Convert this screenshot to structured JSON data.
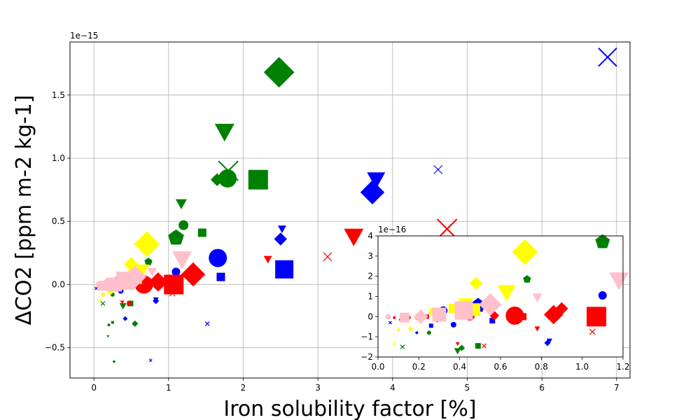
{
  "chart_data": [
    {
      "type": "scatter",
      "title": "",
      "xlabel": "Iron solubility factor [%]",
      "ylabel": "ΔCO2 [ppm m-2 kg-1]",
      "y_offset_label": "1e−15",
      "xlim": [
        -0.32,
        7.18
      ],
      "ylim": [
        -0.74,
        1.92
      ],
      "xticks": [
        0,
        1,
        2,
        3,
        4,
        5,
        6,
        7
      ],
      "xtick_labels": [
        "0",
        "1",
        "2",
        "3",
        "4",
        "5",
        "6",
        "7"
      ],
      "yticks": [
        -0.5,
        0.0,
        0.5,
        1.0,
        1.5
      ],
      "ytick_labels": [
        "−0.5",
        "0.0",
        "0.5",
        "1.0",
        "1.5"
      ],
      "grid": true,
      "legend": "none",
      "points": [
        {
          "x": 2.48,
          "y": 1.68,
          "color": "green",
          "marker": "diamond",
          "size": 19
        },
        {
          "x": 1.75,
          "y": 1.21,
          "color": "green",
          "marker": "triangle-down",
          "size": 14
        },
        {
          "x": 1.8,
          "y": 0.9,
          "color": "green",
          "marker": "x",
          "size": 14
        },
        {
          "x": 1.79,
          "y": 0.84,
          "color": "green",
          "marker": "circle",
          "size": 13
        },
        {
          "x": 1.65,
          "y": 0.83,
          "color": "green",
          "marker": "diamond",
          "size": 8
        },
        {
          "x": 2.2,
          "y": 0.83,
          "color": "green",
          "marker": "square",
          "size": 14
        },
        {
          "x": 1.17,
          "y": 0.64,
          "color": "green",
          "marker": "triangle-down",
          "size": 8
        },
        {
          "x": 1.2,
          "y": 0.47,
          "color": "green",
          "marker": "circle",
          "size": 7
        },
        {
          "x": 1.45,
          "y": 0.41,
          "color": "green",
          "marker": "square",
          "size": 6
        },
        {
          "x": 1.1,
          "y": 0.37,
          "color": "green",
          "marker": "pentagon",
          "size": 12
        },
        {
          "x": 0.73,
          "y": 0.18,
          "color": "green",
          "marker": "pentagon",
          "size": 6
        },
        {
          "x": 0.25,
          "y": -0.08,
          "color": "green",
          "marker": "circle",
          "size": 3
        },
        {
          "x": 0.39,
          "y": -0.17,
          "color": "green",
          "marker": "triangle-down",
          "size": 5
        },
        {
          "x": 0.49,
          "y": -0.15,
          "color": "green",
          "marker": "square",
          "size": 4
        },
        {
          "x": 0.55,
          "y": -0.31,
          "color": "green",
          "marker": "diamond",
          "size": 4
        },
        {
          "x": 0.12,
          "y": -0.15,
          "color": "green",
          "marker": "x",
          "size": 3
        },
        {
          "x": 0.2,
          "y": -0.32,
          "color": "green",
          "marker": "circle",
          "size": 2
        },
        {
          "x": 0.25,
          "y": -0.3,
          "color": "green",
          "marker": "square",
          "size": 2
        },
        {
          "x": 0.19,
          "y": -0.41,
          "color": "green",
          "marker": "triangle-down",
          "size": 2
        },
        {
          "x": 0.27,
          "y": -0.61,
          "color": "green",
          "marker": "diamond",
          "size": 2
        },
        {
          "x": 6.88,
          "y": 1.8,
          "color": "blue",
          "marker": "x",
          "size": 13
        },
        {
          "x": 3.78,
          "y": 0.83,
          "color": "blue",
          "marker": "triangle-down",
          "size": 13
        },
        {
          "x": 3.73,
          "y": 0.73,
          "color": "blue",
          "marker": "diamond",
          "size": 15
        },
        {
          "x": 4.61,
          "y": 0.91,
          "color": "blue",
          "marker": "x",
          "size": 6
        },
        {
          "x": 2.52,
          "y": 0.44,
          "color": "blue",
          "marker": "triangle-down",
          "size": 6
        },
        {
          "x": 2.5,
          "y": 0.36,
          "color": "blue",
          "marker": "diamond",
          "size": 8
        },
        {
          "x": 2.55,
          "y": 0.12,
          "color": "blue",
          "marker": "square",
          "size": 13
        },
        {
          "x": 1.66,
          "y": 0.21,
          "color": "blue",
          "marker": "circle",
          "size": 13
        },
        {
          "x": 1.7,
          "y": 0.06,
          "color": "blue",
          "marker": "square",
          "size": 6
        },
        {
          "x": 1.1,
          "y": 0.1,
          "color": "blue",
          "marker": "circle",
          "size": 6
        },
        {
          "x": 0.5,
          "y": 0.05,
          "color": "blue",
          "marker": "pentagon",
          "size": 11
        },
        {
          "x": 0.32,
          "y": 0.03,
          "color": "blue",
          "marker": "circle",
          "size": 6
        },
        {
          "x": 0.36,
          "y": -0.05,
          "color": "blue",
          "marker": "circle",
          "size": 4
        },
        {
          "x": 0.1,
          "y": -0.02,
          "color": "blue",
          "marker": "circle",
          "size": 2
        },
        {
          "x": 0.03,
          "y": -0.03,
          "color": "blue",
          "marker": "x",
          "size": 2
        },
        {
          "x": 0.83,
          "y": -0.13,
          "color": "blue",
          "marker": "diamond",
          "size": 4
        },
        {
          "x": 0.83,
          "y": -0.12,
          "color": "blue",
          "marker": "triangle-down",
          "size": 4
        },
        {
          "x": 0.42,
          "y": -0.27,
          "color": "blue",
          "marker": "diamond",
          "size": 3
        },
        {
          "x": 1.52,
          "y": -0.31,
          "color": "blue",
          "marker": "x",
          "size": 3
        },
        {
          "x": 0.76,
          "y": -0.6,
          "color": "blue",
          "marker": "x",
          "size": 2
        },
        {
          "x": 4.73,
          "y": 0.44,
          "color": "red",
          "marker": "x",
          "size": 14
        },
        {
          "x": 3.48,
          "y": 0.38,
          "color": "red",
          "marker": "triangle-down",
          "size": 14
        },
        {
          "x": 3.13,
          "y": 0.22,
          "color": "red",
          "marker": "x",
          "size": 6
        },
        {
          "x": 2.33,
          "y": 0.2,
          "color": "red",
          "marker": "triangle-down",
          "size": 6
        },
        {
          "x": 1.33,
          "y": 0.08,
          "color": "red",
          "marker": "diamond",
          "size": 15
        },
        {
          "x": 1.07,
          "y": 0.0,
          "color": "red",
          "marker": "square",
          "size": 14
        },
        {
          "x": 0.86,
          "y": 0.02,
          "color": "red",
          "marker": "diamond",
          "size": 12
        },
        {
          "x": 0.67,
          "y": 0.0,
          "color": "red",
          "marker": "circle",
          "size": 13
        },
        {
          "x": 0.5,
          "y": 0.0,
          "color": "red",
          "marker": "circle",
          "size": 7
        },
        {
          "x": 0.3,
          "y": -0.01,
          "color": "red",
          "marker": "circle",
          "size": 5
        },
        {
          "x": 0.2,
          "y": -0.01,
          "color": "red",
          "marker": "circle",
          "size": 4
        },
        {
          "x": 0.13,
          "y": -0.01,
          "color": "red",
          "marker": "circle",
          "size": 3
        },
        {
          "x": 1.05,
          "y": -0.07,
          "color": "red",
          "marker": "x",
          "size": 4
        },
        {
          "x": 0.47,
          "y": -0.15,
          "color": "red",
          "marker": "square",
          "size": 3
        },
        {
          "x": 0.38,
          "y": -0.14,
          "color": "red",
          "marker": "triangle-down",
          "size": 3
        },
        {
          "x": 0.71,
          "y": 0.32,
          "color": "yellow",
          "marker": "diamond",
          "size": 16
        },
        {
          "x": 0.5,
          "y": 0.16,
          "color": "yellow",
          "marker": "diamond",
          "size": 9
        },
        {
          "x": 0.62,
          "y": 0.1,
          "color": "yellow",
          "marker": "triangle-down",
          "size": 13
        },
        {
          "x": 0.55,
          "y": 0.06,
          "color": "yellow",
          "marker": "square",
          "size": 10
        },
        {
          "x": 0.38,
          "y": 0.05,
          "color": "yellow",
          "marker": "triangle-down",
          "size": 7
        },
        {
          "x": 0.3,
          "y": 0.02,
          "color": "yellow",
          "marker": "square",
          "size": 6
        },
        {
          "x": 0.18,
          "y": 0.0,
          "color": "yellow",
          "marker": "circle",
          "size": 5
        },
        {
          "x": 0.22,
          "y": -0.06,
          "color": "yellow",
          "marker": "diamond",
          "size": 4
        },
        {
          "x": 0.12,
          "y": -0.08,
          "color": "yellow",
          "marker": "circle",
          "size": 3
        },
        {
          "x": 0.08,
          "y": -0.13,
          "color": "yellow",
          "marker": "diamond",
          "size": 2
        },
        {
          "x": 1.18,
          "y": 0.2,
          "color": "pink",
          "marker": "triangle-down",
          "size": 14
        },
        {
          "x": 0.78,
          "y": 0.1,
          "color": "pink",
          "marker": "triangle-down",
          "size": 7
        },
        {
          "x": 0.55,
          "y": 0.06,
          "color": "pink",
          "marker": "diamond",
          "size": 14
        },
        {
          "x": 0.42,
          "y": 0.03,
          "color": "pink",
          "marker": "square",
          "size": 13
        },
        {
          "x": 0.28,
          "y": 0.0,
          "color": "pink",
          "marker": "square",
          "size": 10
        },
        {
          "x": 0.18,
          "y": 0.0,
          "color": "pink",
          "marker": "diamond",
          "size": 9
        },
        {
          "x": 0.12,
          "y": -0.01,
          "color": "pink",
          "marker": "square",
          "size": 7
        },
        {
          "x": 0.06,
          "y": 0.0,
          "color": "pink",
          "marker": "circle",
          "size": 4
        }
      ]
    },
    {
      "type": "scatter",
      "title": "",
      "xlabel": "",
      "ylabel": "",
      "y_offset_label": "1e−16",
      "xlim": [
        0.0,
        1.2
      ],
      "ylim": [
        -2,
        4
      ],
      "xticks": [
        0.0,
        0.2,
        0.4,
        0.6,
        0.8,
        1.0,
        1.2
      ],
      "xtick_labels": [
        "0.0",
        "0.2",
        "0.4",
        "0.6",
        "0.8",
        "1.0",
        "1.2"
      ],
      "yticks": [
        -2,
        -1,
        0,
        1,
        2,
        3,
        4
      ],
      "ytick_labels": [
        "−2",
        "−1",
        "0",
        "1",
        "2",
        "3",
        "4"
      ],
      "grid": false,
      "legend": "none",
      "points": [
        {
          "x": 1.1,
          "y": 3.7,
          "color": "green",
          "marker": "pentagon",
          "size": 11
        },
        {
          "x": 0.73,
          "y": 1.85,
          "color": "green",
          "marker": "pentagon",
          "size": 6
        },
        {
          "x": 0.25,
          "y": -0.8,
          "color": "green",
          "marker": "circle",
          "size": 3
        },
        {
          "x": 0.39,
          "y": -1.7,
          "color": "green",
          "marker": "triangle-down",
          "size": 5
        },
        {
          "x": 0.49,
          "y": -1.45,
          "color": "green",
          "marker": "square",
          "size": 4
        },
        {
          "x": 0.41,
          "y": -1.55,
          "color": "green",
          "marker": "diamond",
          "size": 4
        },
        {
          "x": 0.12,
          "y": -1.5,
          "color": "green",
          "marker": "x",
          "size": 3
        },
        {
          "x": 1.1,
          "y": 1.05,
          "color": "blue",
          "marker": "circle",
          "size": 6
        },
        {
          "x": 0.49,
          "y": 0.55,
          "color": "blue",
          "marker": "pentagon",
          "size": 11
        },
        {
          "x": 0.32,
          "y": 0.3,
          "color": "blue",
          "marker": "circle",
          "size": 6
        },
        {
          "x": 0.37,
          "y": -0.4,
          "color": "blue",
          "marker": "circle",
          "size": 4
        },
        {
          "x": 0.56,
          "y": -0.2,
          "color": "blue",
          "marker": "square",
          "size": 4
        },
        {
          "x": 0.26,
          "y": -0.45,
          "color": "blue",
          "marker": "square",
          "size": 3
        },
        {
          "x": 0.11,
          "y": -0.15,
          "color": "blue",
          "marker": "circle",
          "size": 2
        },
        {
          "x": 0.06,
          "y": -0.3,
          "color": "blue",
          "marker": "x",
          "size": 2
        },
        {
          "x": 0.83,
          "y": -1.3,
          "color": "blue",
          "marker": "diamond",
          "size": 4
        },
        {
          "x": 0.84,
          "y": -1.2,
          "color": "blue",
          "marker": "triangle-down",
          "size": 4
        },
        {
          "x": 0.19,
          "y": -0.8,
          "color": "blue",
          "marker": "circle",
          "size": 2
        },
        {
          "x": 0.67,
          "y": 0.05,
          "color": "red",
          "marker": "circle",
          "size": 13
        },
        {
          "x": 0.86,
          "y": 0.1,
          "color": "red",
          "marker": "diamond",
          "size": 12
        },
        {
          "x": 1.07,
          "y": 0.0,
          "color": "red",
          "marker": "square",
          "size": 14
        },
        {
          "x": 0.9,
          "y": 0.4,
          "color": "red",
          "marker": "diamond",
          "size": 8
        },
        {
          "x": 0.45,
          "y": 0.05,
          "color": "red",
          "marker": "circle",
          "size": 7
        },
        {
          "x": 0.57,
          "y": 0.05,
          "color": "red",
          "marker": "diamond",
          "size": 6
        },
        {
          "x": 0.29,
          "y": -0.1,
          "color": "red",
          "marker": "diamond",
          "size": 5
        },
        {
          "x": 0.71,
          "y": 0.0,
          "color": "red",
          "marker": "square",
          "size": 5
        },
        {
          "x": 0.24,
          "y": 0.0,
          "color": "red",
          "marker": "square",
          "size": 3
        },
        {
          "x": 0.15,
          "y": -0.05,
          "color": "red",
          "marker": "circle",
          "size": 3
        },
        {
          "x": 0.08,
          "y": -0.05,
          "color": "red",
          "marker": "circle",
          "size": 2
        },
        {
          "x": 0.19,
          "y": -0.1,
          "color": "red",
          "marker": "diamond",
          "size": 2
        },
        {
          "x": 0.78,
          "y": -0.6,
          "color": "red",
          "marker": "triangle-down",
          "size": 4
        },
        {
          "x": 1.05,
          "y": -0.75,
          "color": "red",
          "marker": "x",
          "size": 4
        },
        {
          "x": 0.52,
          "y": -1.45,
          "color": "red",
          "marker": "x",
          "size": 3
        },
        {
          "x": 0.39,
          "y": -1.35,
          "color": "red",
          "marker": "triangle-down",
          "size": 3
        },
        {
          "x": 0.72,
          "y": 3.2,
          "color": "yellow",
          "marker": "diamond",
          "size": 16
        },
        {
          "x": 0.48,
          "y": 1.65,
          "color": "yellow",
          "marker": "diamond",
          "size": 8
        },
        {
          "x": 0.63,
          "y": 1.2,
          "color": "yellow",
          "marker": "triangle-down",
          "size": 13
        },
        {
          "x": 0.43,
          "y": 0.6,
          "color": "yellow",
          "marker": "triangle-down",
          "size": 11
        },
        {
          "x": 0.47,
          "y": 0.35,
          "color": "yellow",
          "marker": "square",
          "size": 9
        },
        {
          "x": 0.37,
          "y": 0.4,
          "color": "yellow",
          "marker": "square",
          "size": 7
        },
        {
          "x": 0.27,
          "y": 0.25,
          "color": "yellow",
          "marker": "circle",
          "size": 6
        },
        {
          "x": 0.2,
          "y": 0.1,
          "color": "yellow",
          "marker": "diamond",
          "size": 4
        },
        {
          "x": 0.16,
          "y": -0.6,
          "color": "yellow",
          "marker": "diamond",
          "size": 3
        },
        {
          "x": 0.1,
          "y": -0.65,
          "color": "yellow",
          "marker": "circle",
          "size": 2
        },
        {
          "x": 0.08,
          "y": -1.35,
          "color": "yellow",
          "marker": "diamond",
          "size": 2
        },
        {
          "x": 1.18,
          "y": 1.8,
          "color": "pink",
          "marker": "triangle-down",
          "size": 14
        },
        {
          "x": 0.78,
          "y": 0.95,
          "color": "pink",
          "marker": "triangle-down",
          "size": 7
        },
        {
          "x": 0.55,
          "y": 0.6,
          "color": "pink",
          "marker": "diamond",
          "size": 14
        },
        {
          "x": 0.42,
          "y": 0.3,
          "color": "pink",
          "marker": "square",
          "size": 13
        },
        {
          "x": 0.3,
          "y": 0.1,
          "color": "pink",
          "marker": "square",
          "size": 10
        },
        {
          "x": 0.21,
          "y": 0.0,
          "color": "pink",
          "marker": "diamond",
          "size": 9
        },
        {
          "x": 0.13,
          "y": -0.05,
          "color": "pink",
          "marker": "square",
          "size": 7
        },
        {
          "x": 0.05,
          "y": 0.0,
          "color": "pink",
          "marker": "circle",
          "size": 4
        }
      ]
    }
  ]
}
